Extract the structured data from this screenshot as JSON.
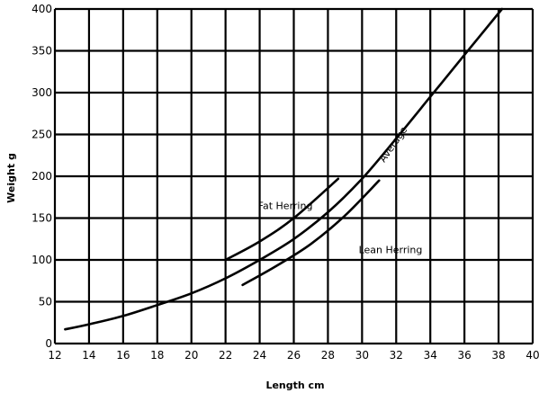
{
  "chart_data": {
    "type": "line",
    "xlabel": "Length  cm",
    "ylabel": "Weight  g",
    "xlim": [
      12,
      40
    ],
    "ylim": [
      0,
      400
    ],
    "x_ticks": [
      12,
      14,
      16,
      18,
      20,
      22,
      24,
      26,
      28,
      30,
      32,
      34,
      36,
      38,
      40
    ],
    "y_ticks": [
      0,
      50,
      100,
      150,
      200,
      250,
      300,
      350,
      400
    ],
    "grid": true,
    "series": [
      {
        "name": "Average",
        "x": [
          12.6,
          14,
          16,
          18,
          20,
          22,
          24,
          26,
          28,
          30,
          32,
          34,
          36,
          38.2
        ],
        "y": [
          17,
          23,
          33,
          46,
          60,
          78,
          100,
          125,
          157,
          197,
          245,
          295,
          345,
          400
        ]
      },
      {
        "name": "Fat Herring",
        "x": [
          22,
          24,
          26,
          28.6
        ],
        "y": [
          100,
          122,
          150,
          197
        ]
      },
      {
        "name": "Lean Herring",
        "x": [
          23,
          25,
          27,
          29,
          31
        ],
        "y": [
          70,
          93,
          119,
          153,
          195
        ]
      }
    ],
    "annotations": [
      {
        "text": "Average",
        "x": 31.3,
        "y": 216,
        "rotate": -55
      },
      {
        "text": "Fat  Herring",
        "x": 23.9,
        "y": 161,
        "rotate": 0
      },
      {
        "text": "Lean  Herring",
        "x": 29.8,
        "y": 108,
        "rotate": 0
      }
    ]
  }
}
